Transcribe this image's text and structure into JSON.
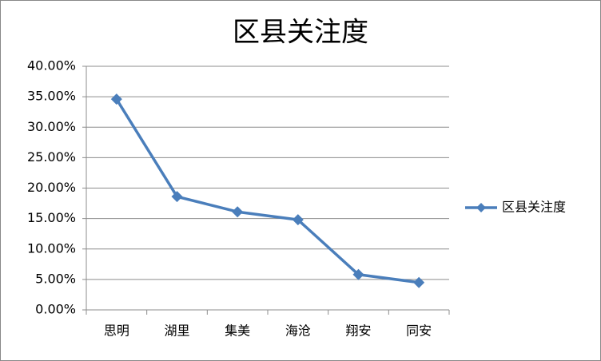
{
  "chart_data": {
    "type": "line",
    "title": "区县关注度",
    "categories": [
      "思明",
      "湖里",
      "集美",
      "海沧",
      "翔安",
      "同安"
    ],
    "series": [
      {
        "name": "区县关注度",
        "color": "#4a7ebb",
        "values": [
          34.6,
          18.6,
          16.1,
          14.8,
          5.8,
          4.5
        ]
      }
    ],
    "ylim": [
      0,
      40
    ],
    "yticks": [
      {
        "value": 0,
        "label": "0.00%"
      },
      {
        "value": 5,
        "label": "5.00%"
      },
      {
        "value": 10,
        "label": "10.00%"
      },
      {
        "value": 15,
        "label": "15.00%"
      },
      {
        "value": 20,
        "label": "20.00%"
      },
      {
        "value": 25,
        "label": "25.00%"
      },
      {
        "value": 30,
        "label": "30.00%"
      },
      {
        "value": 35,
        "label": "35.00%"
      },
      {
        "value": 40,
        "label": "40.00%"
      }
    ],
    "grid": true,
    "legend": "right"
  }
}
